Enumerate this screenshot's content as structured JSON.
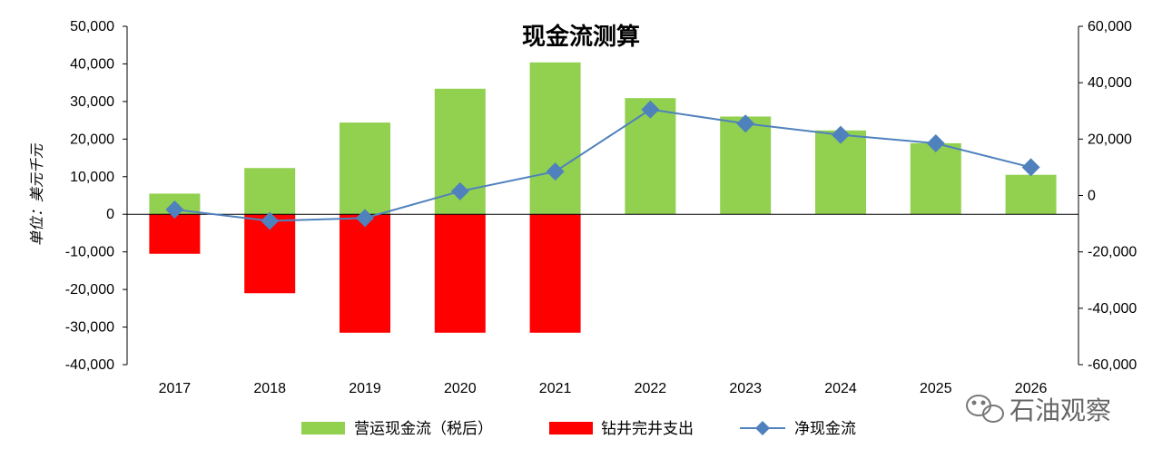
{
  "chart_data": {
    "type": "bar",
    "title": "现金流测算",
    "ylabel": "单位：美元千元",
    "categories": [
      "2017",
      "2018",
      "2019",
      "2020",
      "2021",
      "2022",
      "2023",
      "2024",
      "2025",
      "2026"
    ],
    "ylim_left": [
      -40000,
      50000
    ],
    "yticks_left": [
      "50,000",
      "40,000",
      "30,000",
      "20,000",
      "10,000",
      "0",
      "-10,000",
      "-20,000",
      "-30,000",
      "-40,000"
    ],
    "ylim_right": [
      -60000,
      60000
    ],
    "yticks_right": [
      "60,000",
      "40,000",
      "20,000",
      "0",
      "-20,000",
      "-40,000",
      "-60,000"
    ],
    "series": [
      {
        "name": "营运现金流（税后）",
        "kind": "bar",
        "axis": "left",
        "color": "#92D050",
        "values": [
          5500,
          12300,
          24400,
          33400,
          40400,
          30900,
          26000,
          22300,
          18900,
          10500
        ]
      },
      {
        "name": "钻井完井支出",
        "kind": "bar",
        "axis": "left",
        "color": "#FF0000",
        "values": [
          -10500,
          -21000,
          -31500,
          -31500,
          -31500,
          0,
          0,
          0,
          0,
          0
        ]
      },
      {
        "name": "净现金流",
        "kind": "line",
        "axis": "right",
        "color": "#4F81BD",
        "marker": "diamond",
        "values": [
          -5000,
          -9000,
          -8000,
          1500,
          8500,
          30500,
          25500,
          21500,
          18500,
          10000
        ]
      }
    ],
    "legend_position": "bottom",
    "grid": false
  },
  "watermark": {
    "text": "石油观察",
    "icon": "wechat-icon"
  }
}
